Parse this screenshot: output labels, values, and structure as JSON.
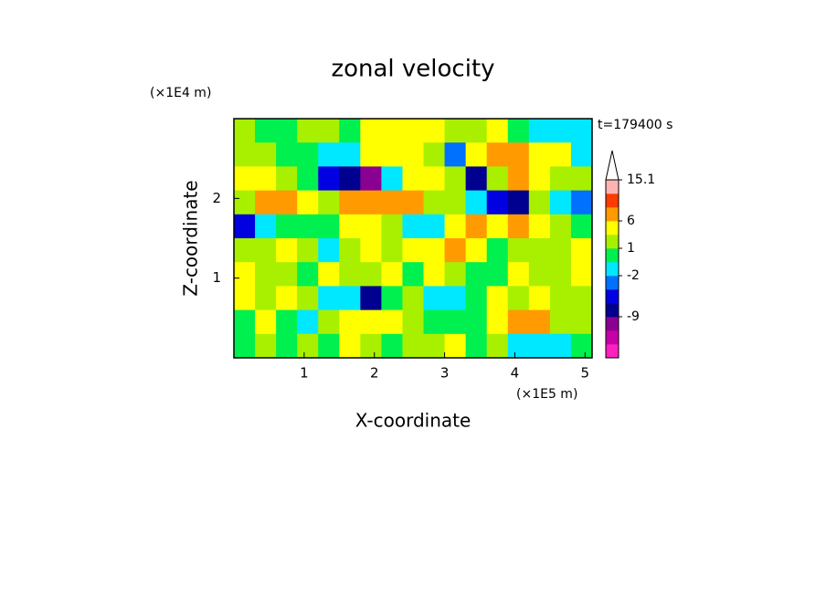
{
  "chart_data": {
    "type": "contour",
    "title": "zonal velocity",
    "xlabel": "X-coordinate",
    "ylabel": "Z-coordinate",
    "x_unit": "(×1E5 m)",
    "y_unit": "(×1E4 m)",
    "annotation": "t=179400 s",
    "xlim": [
      0,
      5.1
    ],
    "ylim": [
      0,
      3
    ],
    "xticks": [
      1,
      2,
      3,
      4,
      5
    ],
    "yticks": [
      1,
      2
    ],
    "x": [
      0.15,
      0.45,
      0.75,
      1.05,
      1.35,
      1.65,
      1.95,
      2.25,
      2.55,
      2.85,
      3.15,
      3.45,
      3.75,
      4.05,
      4.35,
      4.65,
      4.95
    ],
    "y": [
      2.85,
      2.55,
      2.25,
      1.95,
      1.65,
      1.35,
      1.05,
      0.75,
      0.45,
      0.15
    ],
    "z": [
      [
        1,
        0.5,
        0.5,
        1,
        2,
        0.5,
        4,
        5,
        3,
        4,
        2,
        2,
        4,
        0,
        -1,
        -1,
        -1
      ],
      [
        2,
        1,
        0.5,
        0,
        -1,
        -1,
        4,
        4,
        3,
        2,
        -3,
        4,
        6,
        7,
        3,
        4,
        -1
      ],
      [
        4,
        5,
        2,
        0,
        -6,
        -8,
        -10,
        -1,
        4,
        3,
        2,
        -7,
        2,
        7,
        5,
        2,
        1
      ],
      [
        1,
        6,
        7,
        3,
        2,
        7,
        7,
        6,
        8,
        2,
        1,
        -1,
        -5,
        -9,
        2,
        -1,
        -4
      ],
      [
        -5,
        -1,
        0.5,
        0.5,
        0.5,
        4,
        3,
        2,
        -1,
        -1,
        3,
        7,
        3,
        6,
        5,
        1,
        0.5
      ],
      [
        1,
        2,
        3,
        1,
        -2,
        1,
        3,
        1,
        5,
        4,
        6,
        3,
        0.5,
        2,
        1,
        2,
        3
      ],
      [
        3,
        2,
        1,
        0.5,
        3,
        2,
        1,
        3,
        0.5,
        3,
        1,
        0.5,
        0.5,
        3,
        1,
        2,
        3
      ],
      [
        4,
        1,
        3,
        1,
        -1,
        -2,
        -8,
        0.5,
        2,
        -1,
        -1,
        0.5,
        3,
        2,
        4,
        1,
        2
      ],
      [
        0.5,
        3,
        0.5,
        -1,
        1,
        3,
        5,
        3,
        1,
        0.5,
        0.5,
        0.5,
        4,
        6,
        8,
        1,
        2
      ],
      [
        0.5,
        1,
        0.5,
        2,
        0.5,
        3,
        1,
        0.5,
        2,
        1,
        3,
        0.5,
        1,
        -1,
        -2,
        -2,
        0.5
      ]
    ],
    "colorbar": {
      "levels": [
        -18,
        -15,
        -12,
        -9,
        -6,
        -4,
        -2,
        0,
        1,
        3,
        6,
        9,
        12,
        15.1
      ],
      "colors": [
        "#ff20c0",
        "#c800a8",
        "#8a0090",
        "#000090",
        "#0000e0",
        "#0070ff",
        "#00e8ff",
        "#00f050",
        "#a8f000",
        "#ffff00",
        "#ff9a00",
        "#ff3c00",
        "#ffb4b4"
      ],
      "ticks": [
        15.1,
        6,
        1,
        -2,
        -9
      ]
    }
  }
}
